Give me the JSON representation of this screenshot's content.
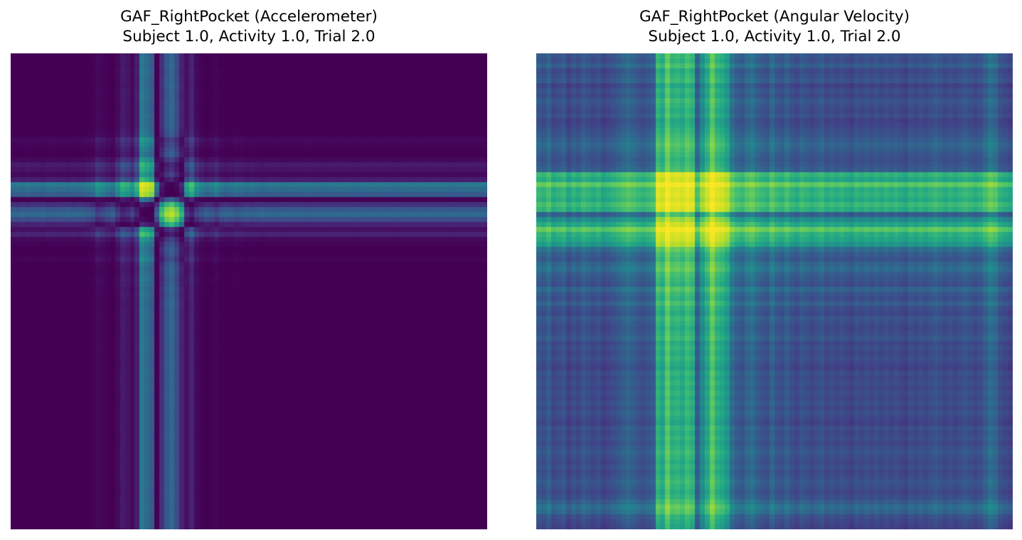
{
  "figure": {
    "panels": [
      {
        "title_line1": "GAF_RightPocket (Accelerometer)",
        "title_line2": "Subject 1.0, Activity 1.0, Trial 2.0"
      },
      {
        "title_line1": "GAF_RightPocket (Angular Velocity)",
        "title_line2": "Subject 1.0, Activity 1.0, Trial 2.0"
      }
    ]
  },
  "chart_data": [
    {
      "type": "heatmap",
      "title": "GAF_RightPocket (Accelerometer)\nSubject 1.0, Activity 1.0, Trial 2.0",
      "colormap": "viridis",
      "vlim": [
        -1,
        1
      ],
      "n": 96,
      "axes": "off",
      "signal_cos_phi": [
        0.0,
        0.02,
        -0.01,
        0.03,
        0.01,
        0.0,
        -0.02,
        0.02,
        0.03,
        0.01,
        0.0,
        -0.01,
        0.02,
        0.0,
        0.01,
        0.05,
        0.1,
        0.3,
        0.22,
        0.12,
        0.05,
        0.3,
        0.52,
        0.45,
        0.3,
        0.55,
        0.98,
        0.95,
        0.9,
        0.02,
        -0.7,
        -0.9,
        -0.95,
        -0.85,
        -0.6,
        0.4,
        0.6,
        0.3,
        0.15,
        0.05,
        0.1,
        0.2,
        0.05,
        0.0,
        0.03,
        0.08,
        0.05,
        0.0,
        0.03,
        0.01,
        -0.02,
        0.0,
        0.02,
        0.01,
        0.0,
        -0.01,
        0.0,
        0.01,
        0.0,
        0.02,
        0.01,
        0.0,
        -0.01,
        0.0,
        0.01,
        0.0,
        0.0,
        0.01,
        0.0,
        -0.01,
        0.0,
        0.01,
        0.0,
        0.0,
        0.01,
        0.0,
        0.0,
        -0.01,
        0.0,
        0.01,
        0.0,
        0.0,
        0.01,
        0.0,
        0.0,
        0.0,
        0.01,
        0.0,
        -0.01,
        0.0,
        0.0,
        0.01,
        0.0,
        0.0,
        0.0,
        0.0
      ]
    },
    {
      "type": "heatmap",
      "title": "GAF_RightPocket (Angular Velocity)\nSubject 1.0, Activity 1.0, Trial 2.0",
      "colormap": "viridis",
      "vlim": [
        -1,
        1
      ],
      "n": 96,
      "axes": "off",
      "signal_cos_phi": [
        0.55,
        0.5,
        0.6,
        0.45,
        0.5,
        0.55,
        0.4,
        0.5,
        0.45,
        0.55,
        0.5,
        0.45,
        0.5,
        0.4,
        0.45,
        0.5,
        0.55,
        0.6,
        0.65,
        0.6,
        0.55,
        0.5,
        0.55,
        0.6,
        0.98,
        0.95,
        1.0,
        0.97,
        0.98,
        0.96,
        0.99,
        0.97,
        0.6,
        0.85,
        0.95,
        1.0,
        0.97,
        0.95,
        0.9,
        0.7,
        0.6,
        0.55,
        0.65,
        0.7,
        0.6,
        0.55,
        0.5,
        0.65,
        0.55,
        0.5,
        0.6,
        0.5,
        0.45,
        0.55,
        0.5,
        0.45,
        0.5,
        0.55,
        0.45,
        0.5,
        0.45,
        0.5,
        0.45,
        0.4,
        0.5,
        0.45,
        0.5,
        0.45,
        0.5,
        0.45,
        0.5,
        0.45,
        0.5,
        0.45,
        0.4,
        0.5,
        0.45,
        0.5,
        0.45,
        0.5,
        0.55,
        0.5,
        0.45,
        0.5,
        0.45,
        0.5,
        0.55,
        0.5,
        0.45,
        0.5,
        0.6,
        0.7,
        0.65,
        0.5,
        0.45,
        0.4
      ]
    }
  ]
}
